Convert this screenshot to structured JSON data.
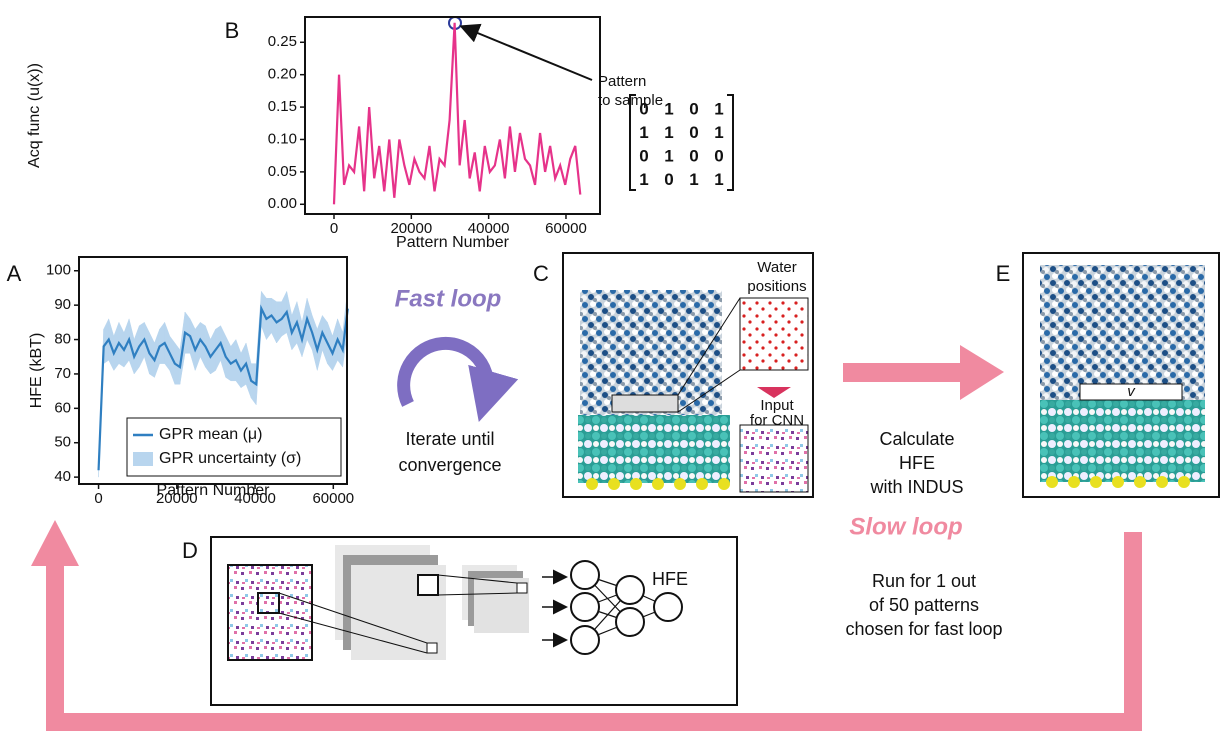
{
  "chart_data": [
    {
      "type": "line",
      "xlabel": "Pattern Number",
      "ylabel": "Acq func (u(x))",
      "x": [
        0,
        1300,
        2600,
        3900,
        5200,
        6500,
        7800,
        9100,
        10400,
        11700,
        13000,
        14300,
        15600,
        16900,
        18200,
        19500,
        20800,
        22100,
        23400,
        24700,
        26000,
        27300,
        28600,
        29900,
        31200,
        32500,
        33800,
        35100,
        36400,
        37700,
        39000,
        40300,
        41600,
        42900,
        44200,
        45500,
        46800,
        48100,
        49400,
        50700,
        52000,
        53300,
        54600,
        55900,
        57200,
        58500,
        59800,
        61100,
        62400,
        63700
      ],
      "series": [
        {
          "color": "#e6338a",
          "values": [
            0.0,
            0.2,
            0.03,
            0.06,
            0.05,
            0.12,
            0.02,
            0.15,
            0.04,
            0.09,
            0.02,
            0.1,
            0.01,
            0.1,
            0.06,
            0.03,
            0.07,
            0.05,
            0.04,
            0.09,
            0.02,
            0.07,
            0.06,
            0.13,
            0.28,
            0.06,
            0.13,
            0.04,
            0.08,
            0.02,
            0.09,
            0.05,
            0.06,
            0.1,
            0.04,
            0.12,
            0.05,
            0.11,
            0.07,
            0.06,
            0.03,
            0.11,
            0.05,
            0.09,
            0.04,
            0.06,
            0.03,
            0.07,
            0.09,
            0.015
          ]
        }
      ],
      "xlim": [
        -7500,
        68800
      ],
      "ylim": [
        -0.015,
        0.289
      ],
      "xticks": [
        0,
        20000,
        40000,
        60000
      ],
      "yticks": [
        {
          "value": 0,
          "label": "0.00"
        },
        0.05,
        {
          "value": 0.1,
          "label": "0.10"
        },
        0.15,
        {
          "value": 0.2,
          "label": "0.20"
        },
        0.25
      ]
    },
    {
      "type": "line",
      "xlabel": "Pattern Number",
      "ylabel": "HFE (kBT)",
      "legend": "lower right",
      "x": [
        0,
        1300,
        2600,
        3900,
        5200,
        6500,
        7800,
        9100,
        10400,
        11700,
        13000,
        14300,
        15600,
        16900,
        18200,
        19500,
        20800,
        22100,
        23400,
        24700,
        26000,
        27300,
        28600,
        29900,
        31200,
        32500,
        33800,
        35100,
        36400,
        37700,
        39000,
        40300,
        41600,
        42900,
        44200,
        45500,
        46800,
        48100,
        49400,
        50700,
        52000,
        53300,
        54600,
        55900,
        57200,
        58500,
        59800,
        61100,
        62400,
        63700
      ],
      "series": [
        {
          "name": "GPR mean (μ)",
          "color": "#2f7fc1",
          "values": [
            42,
            78,
            80,
            76,
            79,
            77,
            80,
            75,
            78,
            80,
            76,
            74,
            78,
            79,
            76,
            73,
            72,
            82,
            81,
            77,
            80,
            78,
            75,
            77,
            79,
            75,
            73,
            74,
            71,
            73,
            68,
            67,
            89,
            86,
            87,
            85,
            86,
            88,
            82,
            85,
            80,
            86,
            82,
            77,
            82,
            79,
            76,
            80,
            77,
            89
          ]
        },
        {
          "name": "GPR uncertainty (σ)",
          "color": "#b8d5ee",
          "kind": "band",
          "values": [
            2,
            5,
            6,
            5,
            6,
            5,
            6,
            5,
            6,
            5,
            6,
            5,
            5,
            6,
            5,
            6,
            5,
            6,
            5,
            6,
            5,
            6,
            5,
            6,
            5,
            6,
            5,
            6,
            5,
            6,
            5,
            6,
            5,
            6,
            5,
            6,
            5,
            6,
            5,
            6,
            5,
            6,
            5,
            6,
            5,
            6,
            5,
            6,
            5,
            6
          ]
        }
      ],
      "xlim": [
        -5000,
        63500
      ],
      "ylim": [
        38,
        104
      ],
      "xticks": [
        0,
        20000,
        40000,
        60000
      ],
      "yticks": [
        40,
        50,
        60,
        70,
        80,
        90,
        100
      ]
    }
  ],
  "panels": {
    "a": "A",
    "b": "B",
    "c": "C",
    "d": "D",
    "e": "E"
  },
  "pattern_annotation": [
    "Pattern",
    "to sample"
  ],
  "matrix": [
    [
      0,
      1,
      0,
      1
    ],
    [
      1,
      1,
      0,
      1
    ],
    [
      0,
      1,
      0,
      0
    ],
    [
      1,
      0,
      1,
      1
    ]
  ],
  "fast_loop": {
    "title": "Fast loop",
    "caption": [
      "Iterate until",
      "convergence"
    ]
  },
  "panel_c": {
    "water_positions": [
      "Water",
      "positions"
    ],
    "cnn_input": [
      "Input",
      "for CNN"
    ]
  },
  "calculate": [
    "Calculate",
    "HFE",
    "with INDUS"
  ],
  "slow_loop": {
    "title": "Slow loop",
    "caption": [
      "Run for 1 out",
      "of 50 patterns",
      "chosen for fast loop"
    ]
  },
  "panel_d_output": "HFE",
  "panel_e_label": "v"
}
